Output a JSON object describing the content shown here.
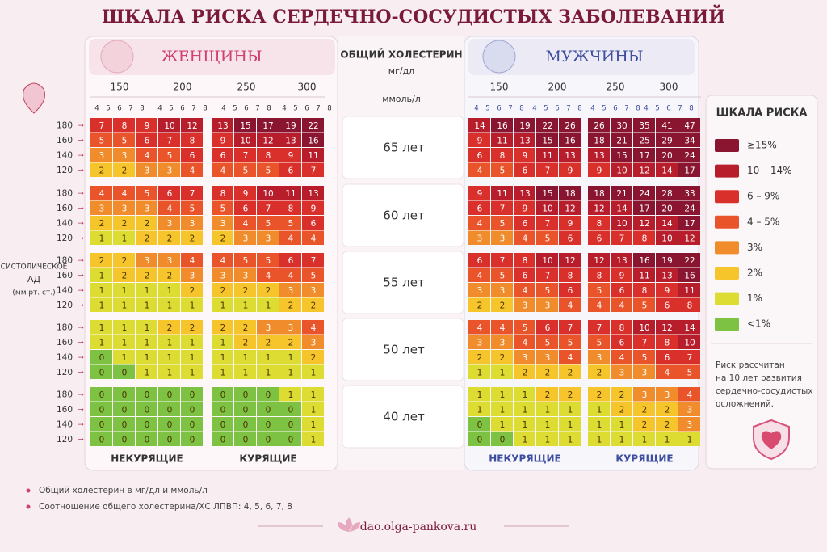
{
  "title": "ШКАЛА РИСКА СЕРДЕЧНО-СОСУДИСТЫХ ЗАБОЛЕВАНИЙ",
  "women_label": "ЖЕНЩИНЫ",
  "men_label": "МУЖЧИНЫ",
  "center": {
    "title": "ОБЩИЙ ХОЛЕСТЕРИН",
    "unit_mg": "мг/дл",
    "unit_mmol": "ммоль/л"
  },
  "cholesterol": [
    150,
    200,
    250,
    300
  ],
  "ratios": [
    4,
    5,
    6,
    7,
    8
  ],
  "bp_label": [
    "СИСТОЛИЧЕСКОЕ",
    "АД",
    "(мм рт. ст.)"
  ],
  "bp": [
    180,
    160,
    140,
    120
  ],
  "ages": [
    "65 лет",
    "60 лет",
    "55 лет",
    "50 лет",
    "40 лет"
  ],
  "smoking_labels": [
    "НЕКУРЯЩИЕ",
    "КУРЯЩИЕ"
  ],
  "women_grid": [
    [
      [
        7,
        8,
        9,
        10,
        12,
        13,
        15,
        17,
        19,
        22
      ],
      [
        5,
        5,
        6,
        7,
        8,
        9,
        10,
        12,
        13,
        16
      ],
      [
        3,
        3,
        4,
        5,
        6,
        6,
        7,
        8,
        9,
        11
      ],
      [
        2,
        2,
        3,
        3,
        4,
        4,
        5,
        5,
        6,
        7
      ]
    ],
    [
      [
        4,
        4,
        5,
        6,
        7,
        8,
        9,
        10,
        11,
        13
      ],
      [
        3,
        3,
        3,
        4,
        5,
        5,
        6,
        7,
        8,
        9
      ],
      [
        2,
        2,
        2,
        3,
        3,
        3,
        4,
        5,
        5,
        6
      ],
      [
        1,
        1,
        2,
        2,
        2,
        2,
        3,
        3,
        4,
        4
      ]
    ],
    [
      [
        2,
        2,
        3,
        3,
        4,
        4,
        5,
        5,
        6,
        7
      ],
      [
        1,
        2,
        2,
        2,
        3,
        3,
        3,
        4,
        4,
        5
      ],
      [
        1,
        1,
        1,
        1,
        2,
        2,
        2,
        2,
        3,
        3
      ],
      [
        1,
        1,
        1,
        1,
        1,
        1,
        1,
        1,
        2,
        2
      ]
    ],
    [
      [
        1,
        1,
        1,
        2,
        2,
        2,
        2,
        3,
        3,
        4
      ],
      [
        1,
        1,
        1,
        1,
        1,
        1,
        2,
        2,
        2,
        3
      ],
      [
        0,
        1,
        1,
        1,
        1,
        1,
        1,
        1,
        1,
        2
      ],
      [
        0,
        0,
        1,
        1,
        1,
        1,
        1,
        1,
        1,
        1
      ]
    ],
    [
      [
        0,
        0,
        0,
        0,
        0,
        0,
        0,
        0,
        1,
        1
      ],
      [
        0,
        0,
        0,
        0,
        0,
        0,
        0,
        0,
        0,
        1
      ],
      [
        0,
        0,
        0,
        0,
        0,
        0,
        0,
        0,
        0,
        1
      ],
      [
        0,
        0,
        0,
        0,
        0,
        0,
        0,
        0,
        0,
        1
      ]
    ]
  ],
  "men_grid": [
    [
      [
        14,
        16,
        19,
        22,
        26,
        26,
        30,
        35,
        41,
        47
      ],
      [
        9,
        11,
        13,
        15,
        16,
        18,
        21,
        25,
        29,
        34
      ],
      [
        6,
        8,
        9,
        11,
        13,
        13,
        15,
        17,
        20,
        24
      ],
      [
        4,
        5,
        6,
        7,
        9,
        9,
        10,
        12,
        14,
        17
      ]
    ],
    [
      [
        9,
        11,
        13,
        15,
        18,
        18,
        21,
        24,
        28,
        33
      ],
      [
        6,
        7,
        9,
        10,
        12,
        12,
        14,
        17,
        20,
        24
      ],
      [
        4,
        5,
        6,
        7,
        9,
        8,
        10,
        12,
        14,
        17
      ],
      [
        3,
        3,
        4,
        5,
        6,
        6,
        7,
        8,
        10,
        12
      ]
    ],
    [
      [
        6,
        7,
        8,
        10,
        12,
        12,
        13,
        16,
        19,
        22
      ],
      [
        4,
        5,
        6,
        7,
        8,
        8,
        9,
        11,
        13,
        16
      ],
      [
        3,
        3,
        4,
        5,
        6,
        5,
        6,
        8,
        9,
        11
      ],
      [
        2,
        2,
        3,
        3,
        4,
        4,
        4,
        5,
        6,
        8
      ]
    ],
    [
      [
        4,
        4,
        5,
        6,
        7,
        7,
        8,
        10,
        12,
        14
      ],
      [
        3,
        3,
        4,
        5,
        5,
        5,
        6,
        7,
        8,
        10
      ],
      [
        2,
        2,
        3,
        3,
        4,
        3,
        4,
        5,
        6,
        7
      ],
      [
        1,
        1,
        2,
        2,
        2,
        2,
        3,
        3,
        4,
        5
      ]
    ],
    [
      [
        1,
        1,
        1,
        2,
        2,
        2,
        2,
        3,
        3,
        4
      ],
      [
        1,
        1,
        1,
        1,
        1,
        1,
        2,
        2,
        2,
        3
      ],
      [
        0,
        1,
        1,
        1,
        1,
        1,
        1,
        2,
        2,
        3
      ],
      [
        0,
        0,
        1,
        1,
        1,
        1,
        1,
        1,
        1,
        1
      ]
    ]
  ],
  "legend": {
    "title": "ШКАЛА РИСКА",
    "items": [
      {
        "label": "≥15%",
        "color": "#8a1530"
      },
      {
        "label": "10 – 14%",
        "color": "#b81d2c"
      },
      {
        "label": "6 – 9%",
        "color": "#d9302c"
      },
      {
        "label": "4 – 5%",
        "color": "#e9542a"
      },
      {
        "label": "3%",
        "color": "#f08c2c"
      },
      {
        "label": "2%",
        "color": "#f6c52c"
      },
      {
        "label": "1%",
        "color": "#dcdc32"
      },
      {
        "label": "<1%",
        "color": "#7dc242"
      }
    ]
  },
  "note": [
    "Риск рассчитан",
    "на 10 лет развития",
    "сердечно-сосудистых",
    "осложнений."
  ],
  "footnotes": [
    "Общий холестерин в мг/дл и ммоль/л",
    "Соотношение общего холестерина/ХС ЛПВП: 4, 5, 6, 7, 8"
  ],
  "site": "dao.olga-pankova.ru"
}
